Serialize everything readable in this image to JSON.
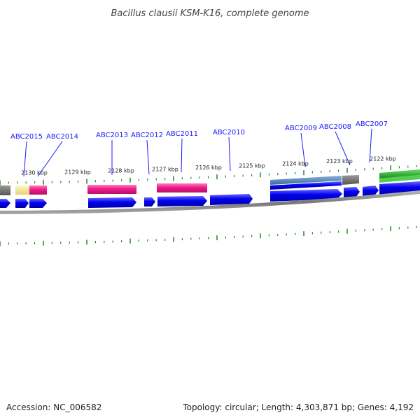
{
  "title": "Bacillus clausii KSM-K16, complete genome",
  "footer": {
    "accession": "Accession: NC_006582",
    "info": "Topology: circular; Length: 4,303,871 bp; Genes: 4,192"
  },
  "tick_labels": [
    "2130 kbp",
    "2129 kbp",
    "2128 kbp",
    "2127 kbp",
    "2126 kbp",
    "2125 kbp",
    "2124 kbp",
    "2123 kbp",
    "2122 kbp"
  ],
  "gene_labels": [
    "ABC2015",
    "ABC2014",
    "ABC2013",
    "ABC2012",
    "ABC2011",
    "ABC2010",
    "ABC2009",
    "ABC2008",
    "ABC2007"
  ],
  "colors": {
    "cds": "#0000ee",
    "pink": "#ee1a88",
    "yellow": "#f0e08a",
    "gray": "#666666",
    "steel": "#4a7ab0",
    "green": "#22aa22",
    "tick": "#228822",
    "backbone": "#888888"
  }
}
